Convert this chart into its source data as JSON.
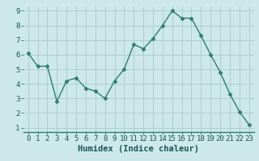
{
  "x": [
    0,
    1,
    2,
    3,
    4,
    5,
    6,
    7,
    8,
    9,
    10,
    11,
    12,
    13,
    14,
    15,
    16,
    17,
    18,
    19,
    20,
    21,
    22,
    23
  ],
  "y": [
    6.1,
    5.2,
    5.2,
    2.8,
    4.2,
    4.4,
    3.7,
    3.5,
    3.0,
    4.2,
    5.0,
    6.7,
    6.4,
    7.1,
    8.0,
    9.0,
    8.5,
    8.5,
    7.3,
    6.0,
    4.8,
    3.3,
    2.1,
    1.2
  ],
  "xlabel": "Humidex (Indice chaleur)",
  "ylim_min": 0.7,
  "ylim_max": 9.3,
  "xlim_min": -0.5,
  "xlim_max": 23.5,
  "yticks": [
    1,
    2,
    3,
    4,
    5,
    6,
    7,
    8,
    9
  ],
  "xticks": [
    0,
    1,
    2,
    3,
    4,
    5,
    6,
    7,
    8,
    9,
    10,
    11,
    12,
    13,
    14,
    15,
    16,
    17,
    18,
    19,
    20,
    21,
    22,
    23
  ],
  "line_color": "#2e7d6e",
  "marker": "D",
  "marker_size": 2.5,
  "bg_color": "#cce8e8",
  "grid_color": "#b0cece",
  "tick_label_fontsize": 6.5,
  "xlabel_fontsize": 7.5
}
